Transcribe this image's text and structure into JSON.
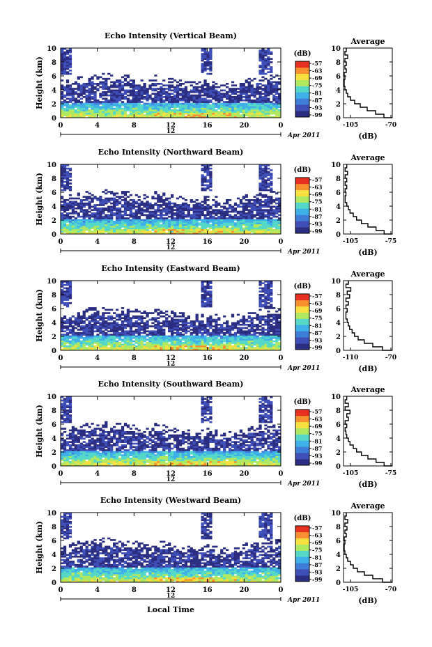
{
  "figure": {
    "date_label": "Apr 2011",
    "xlabel": "Local Time",
    "colorbar_unit": "(dB)",
    "colorbar_ticks": [
      "-57",
      "-63",
      "-69",
      "-75",
      "-81",
      "-87",
      "-93",
      "-99"
    ],
    "colorbar_colors": [
      "#2b2d80",
      "#3f4fb8",
      "#3f7ed8",
      "#3fb0e8",
      "#55d8c8",
      "#b0e860",
      "#f8e040",
      "#f89030",
      "#e83020"
    ]
  },
  "chart_data": [
    {
      "type": "heatmap",
      "title": "Echo Intensity (Vertical Beam)",
      "ylabel": "Height (km)",
      "xlim": [
        0,
        24
      ],
      "ylim": [
        0,
        10
      ],
      "xticks": [
        "0",
        "4",
        "8",
        "12",
        "16",
        "20",
        "0"
      ],
      "yticks": [
        "0",
        "2",
        "4",
        "6",
        "8",
        "10"
      ],
      "day_label": "12",
      "color_range_db": [
        -99,
        -57
      ],
      "profile": {
        "title": "Average",
        "xlabel": "(dB)",
        "xlim": [
          -105,
          -70
        ],
        "xticks": [
          "-105",
          "-70"
        ],
        "heights": [
          0,
          0.5,
          1,
          1.5,
          2,
          2.5,
          3,
          3.5,
          4,
          4.5,
          5,
          5.5,
          6,
          6.5,
          7,
          7.5,
          8,
          8.5,
          9,
          9.5,
          10
        ],
        "values": [
          -70,
          -76,
          -82,
          -88,
          -93,
          -97,
          -100,
          -102,
          -103,
          -104,
          -104.5,
          -104.5,
          -104,
          -104.5,
          -103,
          -104,
          -103,
          -104,
          -102,
          -104,
          -103
        ]
      }
    },
    {
      "type": "heatmap",
      "title": "Echo Intensity (Northward Beam)",
      "ylabel": "Height (km)",
      "xlim": [
        0,
        24
      ],
      "ylim": [
        0,
        10
      ],
      "xticks": [
        "0",
        "4",
        "8",
        "12",
        "16",
        "20",
        "0"
      ],
      "yticks": [
        "0",
        "2",
        "4",
        "6",
        "8",
        "10"
      ],
      "day_label": "12",
      "color_range_db": [
        -99,
        -57
      ],
      "profile": {
        "title": "Average",
        "xlabel": "(dB)",
        "xlim": [
          -105,
          -75
        ],
        "xticks": [
          "-105",
          "-75"
        ],
        "heights": [
          0,
          0.5,
          1,
          1.5,
          2,
          2.5,
          3,
          3.5,
          4,
          4.5,
          5,
          5.5,
          6,
          6.5,
          7,
          7.5,
          8,
          8.5,
          9,
          9.5,
          10
        ],
        "values": [
          -75,
          -80,
          -85,
          -90,
          -94,
          -97,
          -99,
          -101,
          -102,
          -103,
          -104,
          -104,
          -103.5,
          -104,
          -103,
          -104,
          -103,
          -104,
          -102.5,
          -104,
          -103
        ]
      }
    },
    {
      "type": "heatmap",
      "title": "Echo Intensity (Eastward Beam)",
      "ylabel": "Height (km)",
      "xlim": [
        0,
        24
      ],
      "ylim": [
        0,
        10
      ],
      "xticks": [
        "0",
        "4",
        "8",
        "12",
        "16",
        "20",
        "0"
      ],
      "yticks": [
        "0",
        "2",
        "4",
        "6",
        "8",
        "10"
      ],
      "day_label": "12",
      "color_range_db": [
        -99,
        -57
      ],
      "profile": {
        "title": "Average",
        "xlabel": "(dB)",
        "xlim": [
          -110,
          -70
        ],
        "xticks": [
          "-110",
          "-70"
        ],
        "heights": [
          0,
          0.5,
          1,
          1.5,
          2,
          2.5,
          3,
          3.5,
          4,
          4.5,
          5,
          5.5,
          6,
          6.5,
          7,
          7.5,
          8,
          8.5,
          9,
          9.5,
          10
        ],
        "values": [
          -70,
          -78,
          -86,
          -93,
          -98,
          -101,
          -103,
          -105,
          -106,
          -107,
          -108,
          -108,
          -107,
          -108,
          -106,
          -108,
          -105,
          -107,
          -104,
          -108,
          -106
        ]
      }
    },
    {
      "type": "heatmap",
      "title": "Echo Intensity (Southward Beam)",
      "ylabel": "Height (km)",
      "xlim": [
        0,
        24
      ],
      "ylim": [
        0,
        10
      ],
      "xticks": [
        "0",
        "4",
        "8",
        "12",
        "16",
        "20",
        "0"
      ],
      "yticks": [
        "0",
        "2",
        "4",
        "6",
        "8",
        "10"
      ],
      "day_label": "12",
      "color_range_db": [
        -99,
        -57
      ],
      "profile": {
        "title": "Average",
        "xlabel": "(dB)",
        "xlim": [
          -105,
          -75
        ],
        "xticks": [
          "-105",
          "-75"
        ],
        "heights": [
          0,
          0.5,
          1,
          1.5,
          2,
          2.5,
          3,
          3.5,
          4,
          4.5,
          5,
          5.5,
          6,
          6.5,
          7,
          7.5,
          8,
          8.5,
          9,
          9.5,
          10
        ],
        "values": [
          -75,
          -80,
          -85,
          -90,
          -94,
          -97,
          -99,
          -101,
          -102,
          -103,
          -103.5,
          -104,
          -103,
          -104,
          -102,
          -103,
          -101,
          -104,
          -102,
          -104,
          -103
        ]
      }
    },
    {
      "type": "heatmap",
      "title": "Echo Intensity (Westward Beam)",
      "ylabel": "Height (km)",
      "xlim": [
        0,
        24
      ],
      "ylim": [
        0,
        10
      ],
      "xticks": [
        "0",
        "4",
        "8",
        "12",
        "16",
        "20",
        "0"
      ],
      "yticks": [
        "0",
        "2",
        "4",
        "6",
        "8",
        "10"
      ],
      "day_label": "12",
      "color_range_db": [
        -99,
        -57
      ],
      "profile": {
        "title": "Average",
        "xlabel": "(dB)",
        "xlim": [
          -105,
          -70
        ],
        "xticks": [
          "-105",
          "-70"
        ],
        "heights": [
          0,
          0.5,
          1,
          1.5,
          2,
          2.5,
          3,
          3.5,
          4,
          4.5,
          5,
          5.5,
          6,
          6.5,
          7,
          7.5,
          8,
          8.5,
          9,
          9.5,
          10
        ],
        "values": [
          -70,
          -77,
          -84,
          -90,
          -95,
          -98,
          -100,
          -102,
          -103,
          -104,
          -104.5,
          -104.5,
          -104,
          -104.5,
          -103,
          -104,
          -102.5,
          -104,
          -102,
          -104,
          -103
        ]
      }
    }
  ]
}
